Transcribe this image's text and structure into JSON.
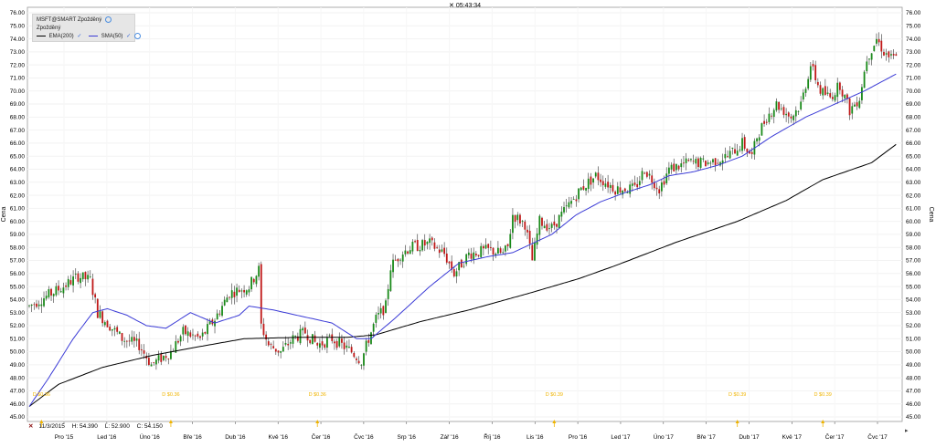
{
  "header": {
    "time": "05:43:34"
  },
  "legend": {
    "instrument": "MSFT@SMART Zpožděný",
    "sub": "Zpožděný",
    "items": [
      {
        "label": "EMA(200)",
        "color": "#000000"
      },
      {
        "label": "SMA(50)",
        "color": "#3b3bd6"
      }
    ]
  },
  "info": {
    "date": "11/3/2015",
    "high": "H: 54.390",
    "low": "L: 52.900",
    "close": "C: 54.150"
  },
  "colors": {
    "up": "#1a8a1a",
    "down": "#c01818",
    "ema": "#000000",
    "sma": "#3b3bd6",
    "dividend": "#f0b400"
  },
  "chart_data": {
    "type": "line",
    "ylabel": "Cena",
    "ylim": [
      45,
      76
    ],
    "yticks": [
      "45.00",
      "46.00",
      "47.00",
      "48.00",
      "49.00",
      "50.00",
      "51.00",
      "52.00",
      "53.00",
      "54.00",
      "55.00",
      "56.00",
      "57.00",
      "58.00",
      "59.00",
      "60.00",
      "61.00",
      "62.00",
      "63.00",
      "64.00",
      "65.00",
      "66.00",
      "67.00",
      "68.00",
      "69.00",
      "70.00",
      "71.00",
      "72.00",
      "73.00",
      "74.00",
      "75.00",
      "76.00"
    ],
    "xtick_labels": [
      "Pro '15",
      "Led '16",
      "Úno '16",
      "Bře '16",
      "Dub '16",
      "Kvě '16",
      "Čer '16",
      "Čvc '16",
      "Srp '16",
      "Zář '16",
      "Říj '16",
      "Lis '16",
      "Pro '16",
      "Led '17",
      "Úno '17",
      "Bře '17",
      "Dub '17",
      "Kvě '17",
      "Čer '17",
      "Čvc '17"
    ],
    "price_series": {
      "name": "MSFT",
      "anchors": [
        [
          0,
          53.5
        ],
        [
          14,
          55.0
        ],
        [
          20,
          55.8
        ],
        [
          25,
          55.5
        ],
        [
          28,
          53.0
        ],
        [
          33,
          52.0
        ],
        [
          38,
          51.0
        ],
        [
          45,
          50.5
        ],
        [
          50,
          49.0
        ],
        [
          58,
          50.0
        ],
        [
          63,
          51.5
        ],
        [
          70,
          51.0
        ],
        [
          76,
          52.5
        ],
        [
          82,
          54.5
        ],
        [
          90,
          55.0
        ],
        [
          94,
          56.3
        ],
        [
          95,
          52.0
        ],
        [
          98,
          50.5
        ],
        [
          103,
          50.0
        ],
        [
          108,
          51.0
        ],
        [
          113,
          51.5
        ],
        [
          118,
          50.5
        ],
        [
          124,
          51.0
        ],
        [
          132,
          50.0
        ],
        [
          136,
          49.3
        ],
        [
          139,
          51.0
        ],
        [
          142,
          52.5
        ],
        [
          146,
          53.5
        ],
        [
          148,
          56.5
        ],
        [
          152,
          57.5
        ],
        [
          156,
          58.0
        ],
        [
          164,
          58.3
        ],
        [
          170,
          57.5
        ],
        [
          174,
          56.0
        ],
        [
          180,
          57.5
        ],
        [
          188,
          57.8
        ],
        [
          194,
          57.5
        ],
        [
          196,
          58.0
        ],
        [
          198,
          60.5
        ],
        [
          203,
          59.8
        ],
        [
          206,
          57.0
        ],
        [
          209,
          60.0
        ],
        [
          214,
          59.5
        ],
        [
          220,
          61.0
        ],
        [
          226,
          62.5
        ],
        [
          232,
          63.5
        ],
        [
          240,
          62.5
        ],
        [
          248,
          62.5
        ],
        [
          252,
          64.0
        ],
        [
          258,
          62.5
        ],
        [
          262,
          64.0
        ],
        [
          270,
          64.5
        ],
        [
          278,
          64.5
        ],
        [
          286,
          65.0
        ],
        [
          292,
          66.0
        ],
        [
          296,
          65.0
        ],
        [
          298,
          66.5
        ],
        [
          302,
          68.0
        ],
        [
          306,
          69.0
        ],
        [
          312,
          68.0
        ],
        [
          316,
          69.0
        ],
        [
          320,
          72.0
        ],
        [
          324,
          70.0
        ],
        [
          328,
          69.5
        ],
        [
          332,
          70.5
        ],
        [
          336,
          68.5
        ],
        [
          340,
          69.5
        ],
        [
          343,
          72.5
        ],
        [
          347,
          74.0
        ],
        [
          350,
          73.0
        ],
        [
          353,
          72.5
        ],
        [
          355,
          72.5
        ]
      ]
    },
    "ema200": [
      [
        0,
        45.8
      ],
      [
        12,
        47.5
      ],
      [
        30,
        48.8
      ],
      [
        50,
        49.7
      ],
      [
        70,
        50.4
      ],
      [
        88,
        51.0
      ],
      [
        110,
        51.1
      ],
      [
        130,
        51.1
      ],
      [
        142,
        51.3
      ],
      [
        160,
        52.3
      ],
      [
        180,
        53.2
      ],
      [
        205,
        54.5
      ],
      [
        225,
        55.6
      ],
      [
        240,
        56.6
      ],
      [
        265,
        58.4
      ],
      [
        290,
        60.0
      ],
      [
        310,
        61.6
      ],
      [
        325,
        63.2
      ],
      [
        345,
        64.5
      ],
      [
        355,
        65.9
      ]
    ],
    "sma50": [
      [
        0,
        45.8
      ],
      [
        8,
        48.0
      ],
      [
        18,
        51.0
      ],
      [
        26,
        53.0
      ],
      [
        32,
        53.3
      ],
      [
        40,
        52.8
      ],
      [
        48,
        52.0
      ],
      [
        56,
        51.8
      ],
      [
        66,
        53.0
      ],
      [
        76,
        52.2
      ],
      [
        86,
        52.8
      ],
      [
        90,
        53.5
      ],
      [
        100,
        53.2
      ],
      [
        112,
        52.7
      ],
      [
        124,
        52.2
      ],
      [
        134,
        51.0
      ],
      [
        140,
        51.0
      ],
      [
        150,
        52.6
      ],
      [
        164,
        55.0
      ],
      [
        176,
        56.8
      ],
      [
        188,
        57.3
      ],
      [
        198,
        57.6
      ],
      [
        206,
        58.3
      ],
      [
        214,
        59.0
      ],
      [
        224,
        60.5
      ],
      [
        234,
        61.5
      ],
      [
        244,
        62.2
      ],
      [
        254,
        62.8
      ],
      [
        262,
        63.5
      ],
      [
        272,
        63.8
      ],
      [
        282,
        64.3
      ],
      [
        292,
        65.0
      ],
      [
        304,
        66.5
      ],
      [
        318,
        68.0
      ],
      [
        330,
        69.0
      ],
      [
        342,
        70.0
      ],
      [
        355,
        71.3
      ]
    ],
    "dividends": [
      {
        "label": "D $0.36",
        "x": 5
      },
      {
        "label": "D $0.36",
        "x": 58
      },
      {
        "label": "D $0.36",
        "x": 118
      },
      {
        "label": "D $0.39",
        "x": 215
      },
      {
        "label": "D $0.39",
        "x": 290
      },
      {
        "label": "D $0.39",
        "x": 325
      }
    ],
    "grid": true
  }
}
